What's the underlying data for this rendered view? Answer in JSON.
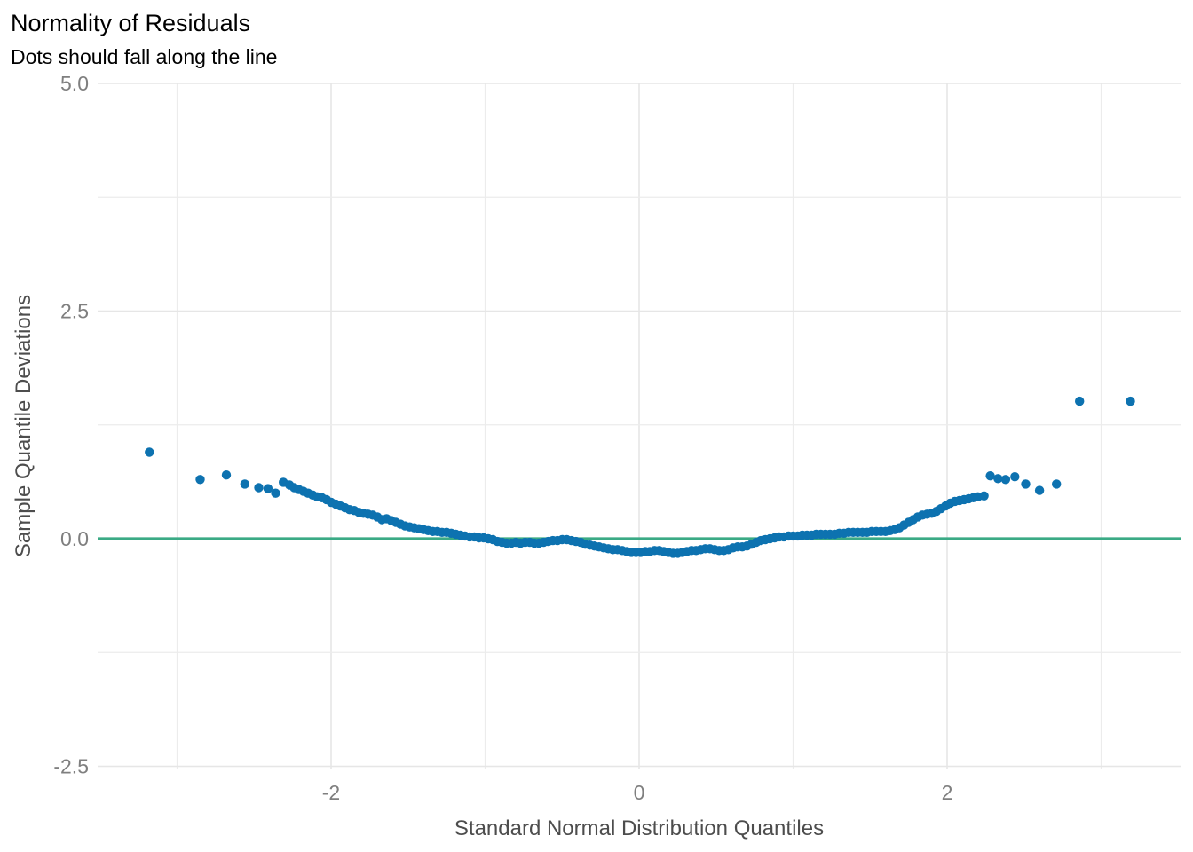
{
  "chart_data": {
    "type": "scatter",
    "title": "Normality of Residuals",
    "subtitle": "Dots should fall along the line",
    "xlabel": "Standard Normal Distribution Quantiles",
    "ylabel": "Sample Quantile Deviations",
    "xlim": [
      -3.5,
      3.5
    ],
    "ylim": [
      -2.5,
      5.0
    ],
    "x_ticks": [
      -2,
      0,
      2
    ],
    "x_tick_labels": [
      "-2",
      "0",
      "2"
    ],
    "y_ticks": [
      -2.5,
      0.0,
      2.5,
      5.0
    ],
    "y_tick_labels": [
      "-2.5",
      "0.0",
      "2.5",
      "5.0"
    ],
    "grid": true,
    "legend": "none",
    "reference_line": {
      "y": 0,
      "color": "#3aaa85"
    },
    "point_color": "#0d72b0",
    "series": [
      {
        "x": [
          -3.18,
          -2.85,
          -2.68,
          -2.56,
          -2.47,
          -2.41,
          -2.36,
          -2.31,
          -2.27,
          -2.24,
          -2.21,
          -2.18,
          -2.15,
          -2.12,
          -2.09,
          -2.06,
          -2.03,
          -2.0,
          -1.97,
          -1.94,
          -1.91,
          -1.88,
          -1.85,
          -1.82,
          -1.79,
          -1.76,
          -1.73,
          -1.7,
          -1.67,
          -1.64,
          -1.61,
          -1.58,
          -1.55,
          -1.52,
          -1.49,
          -1.46,
          -1.43,
          -1.4,
          -1.37,
          -1.34,
          -1.31,
          -1.28,
          -1.25,
          -1.22,
          -1.19,
          -1.16,
          -1.13,
          -1.1,
          -1.07,
          -1.04,
          -1.01,
          -0.98,
          -0.95,
          -0.92,
          -0.89,
          -0.86,
          -0.83,
          -0.8,
          -0.77,
          -0.74,
          -0.71,
          -0.68,
          -0.65,
          -0.62,
          -0.59,
          -0.56,
          -0.53,
          -0.5,
          -0.47,
          -0.44,
          -0.41,
          -0.38,
          -0.35,
          -0.32,
          -0.29,
          -0.26,
          -0.23,
          -0.2,
          -0.17,
          -0.14,
          -0.11,
          -0.08,
          -0.05,
          -0.02,
          0.01,
          0.04,
          0.07,
          0.1,
          0.13,
          0.16,
          0.19,
          0.22,
          0.25,
          0.28,
          0.31,
          0.34,
          0.37,
          0.4,
          0.43,
          0.46,
          0.49,
          0.52,
          0.55,
          0.58,
          0.61,
          0.64,
          0.67,
          0.7,
          0.73,
          0.76,
          0.79,
          0.82,
          0.85,
          0.88,
          0.91,
          0.94,
          0.97,
          1.0,
          1.03,
          1.06,
          1.09,
          1.12,
          1.15,
          1.18,
          1.21,
          1.24,
          1.27,
          1.3,
          1.33,
          1.36,
          1.39,
          1.42,
          1.45,
          1.48,
          1.51,
          1.54,
          1.57,
          1.6,
          1.63,
          1.66,
          1.69,
          1.72,
          1.75,
          1.78,
          1.81,
          1.84,
          1.87,
          1.9,
          1.93,
          1.96,
          1.99,
          2.02,
          2.05,
          2.08,
          2.11,
          2.14,
          2.17,
          2.2,
          2.24,
          2.28,
          2.33,
          2.38,
          2.44,
          2.51,
          2.6,
          2.71,
          2.86,
          3.19
        ],
        "y": [
          0.95,
          0.65,
          0.7,
          0.6,
          0.56,
          0.55,
          0.5,
          0.62,
          0.59,
          0.56,
          0.54,
          0.52,
          0.5,
          0.48,
          0.46,
          0.45,
          0.43,
          0.4,
          0.38,
          0.36,
          0.34,
          0.32,
          0.31,
          0.29,
          0.28,
          0.27,
          0.26,
          0.24,
          0.21,
          0.22,
          0.2,
          0.18,
          0.16,
          0.14,
          0.13,
          0.12,
          0.11,
          0.1,
          0.09,
          0.08,
          0.08,
          0.07,
          0.07,
          0.06,
          0.05,
          0.04,
          0.03,
          0.02,
          0.02,
          0.01,
          0.01,
          0.0,
          -0.01,
          -0.03,
          -0.04,
          -0.05,
          -0.05,
          -0.04,
          -0.05,
          -0.04,
          -0.04,
          -0.05,
          -0.05,
          -0.04,
          -0.03,
          -0.02,
          -0.02,
          -0.01,
          -0.01,
          -0.02,
          -0.03,
          -0.04,
          -0.06,
          -0.07,
          -0.08,
          -0.09,
          -0.1,
          -0.11,
          -0.12,
          -0.12,
          -0.13,
          -0.14,
          -0.15,
          -0.15,
          -0.15,
          -0.14,
          -0.14,
          -0.13,
          -0.13,
          -0.14,
          -0.15,
          -0.16,
          -0.16,
          -0.15,
          -0.14,
          -0.13,
          -0.13,
          -0.12,
          -0.11,
          -0.11,
          -0.12,
          -0.13,
          -0.13,
          -0.12,
          -0.1,
          -0.09,
          -0.09,
          -0.08,
          -0.06,
          -0.04,
          -0.02,
          -0.01,
          0.0,
          0.01,
          0.02,
          0.02,
          0.03,
          0.03,
          0.03,
          0.04,
          0.04,
          0.04,
          0.05,
          0.05,
          0.05,
          0.05,
          0.05,
          0.06,
          0.06,
          0.07,
          0.07,
          0.07,
          0.07,
          0.07,
          0.08,
          0.08,
          0.08,
          0.08,
          0.09,
          0.1,
          0.12,
          0.15,
          0.18,
          0.21,
          0.24,
          0.26,
          0.27,
          0.28,
          0.3,
          0.33,
          0.36,
          0.39,
          0.41,
          0.42,
          0.43,
          0.44,
          0.45,
          0.46,
          0.47,
          0.69,
          0.66,
          0.65,
          0.68,
          0.6,
          0.53,
          0.6,
          1.51,
          1.51
        ]
      }
    ]
  }
}
